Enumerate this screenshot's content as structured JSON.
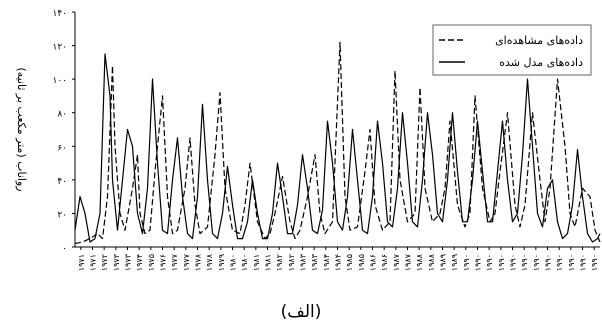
{
  "chart_data": {
    "type": "line",
    "ylabel": "رواناب (متر مکعب بر ثانیه)",
    "caption": "(الف)",
    "ylim": [
      0,
      140
    ],
    "yticks": [
      0,
      20,
      40,
      60,
      80,
      100,
      120,
      140
    ],
    "ytick_labels": [
      "۰",
      "۲۰",
      "۴۰",
      "۶۰",
      "۸۰",
      "۱۰۰",
      "۱۲۰",
      "۱۴۰"
    ],
    "grid": false,
    "legend_position": "top-right",
    "xticks": [
      1971,
      1972,
      1973,
      1974,
      1975,
      1976,
      1977,
      1978,
      1979,
      1980,
      1981,
      1982,
      1983,
      1984,
      1985,
      1986,
      1987,
      1988,
      1989,
      1990,
      1991,
      1992,
      1993,
      1994,
      1995,
      1996,
      1997,
      1998,
      1999,
      2000,
      2001,
      2002,
      2003,
      2004,
      2005,
      2006,
      2007,
      2008,
      2009,
      2010,
      2011,
      2012,
      2013,
      2014,
      2015
    ],
    "xtick_labels": [
      "۱۹۷۱",
      "۱۹۷۱",
      "۱۹۷۲",
      "۱۹۷۳",
      "۱۹۷۳",
      "۱۹۷۴",
      "۱۹۷۵",
      "۱۹۷۶",
      "۱۹۷۷",
      "۱۹۷۷",
      "۱۹۷۸",
      "۱۹۷۸",
      "۱۹۷۹",
      "۱۹۸۰",
      "۱۹۸۰",
      "۱۹۸۱",
      "۱۹۸۱",
      "۱۹۸۲",
      "۱۹۸۲",
      "۱۹۸۳",
      "۱۹۸۳",
      "۱۹۸۴",
      "۱۹۸۴",
      "۱۹۸۵",
      "۱۹۸۵",
      "۱۹۸۶",
      "۱۹۸۶",
      "۱۹۸۷",
      "۱۹۸۷",
      "۱۹۸۸",
      "۱۹۸۸",
      "۱۹۸۹",
      "۱۹۸۹",
      "۱۹۹۰",
      "۱۹۹۰",
      "۱۹۹۰",
      "۱۹۹۰",
      "۱۹۹۰",
      "۱۹۹۰",
      "۱۹۹۰",
      "۱۹۹۰",
      "۱۹۹۰",
      "۱۹۹۰",
      "۱۹۹۰",
      "۱۹۹۰"
    ],
    "series": [
      {
        "name": "داده‌های مشاهده‌ای",
        "style": "dashed",
        "color": "#000000",
        "x": [
          1970.0,
          1970.3,
          1970.6,
          1970.9,
          1971.1,
          1971.3,
          1971.5,
          1971.6,
          1971.8,
          1972.0,
          1972.3,
          1972.5,
          1972.6,
          1972.8,
          1973.0,
          1973.2,
          1973.5,
          1973.7,
          1973.9,
          1974.1,
          1974.4,
          1974.6,
          1974.8,
          1975.0,
          1975.3,
          1975.6,
          1975.8,
          1976.0,
          1976.3,
          1976.6,
          1976.8,
          1977.0,
          1977.3,
          1977.6,
          1977.8,
          1978.0,
          1978.3,
          1978.6,
          1978.8,
          1979.0,
          1979.3,
          1979.6,
          1979.8,
          1980.0,
          1980.3,
          1980.6,
          1980.8,
          1981.0,
          1981.3,
          1981.6,
          1981.8,
          1982.0,
          1982.3,
          1982.6,
          1982.8,
          1983.0,
          1983.3,
          1983.6,
          1983.8,
          1984.0,
          1984.3,
          1984.6,
          1984.8,
          1985.0,
          1985.3,
          1985.6,
          1985.8,
          1986.0,
          1986.3,
          1986.6,
          1986.8,
          1987.0,
          1987.3,
          1987.6,
          1987.8,
          1988.0,
          1988.3,
          1988.6,
          1988.8,
          1989.0,
          1989.3,
          1989.6,
          1989.8,
          1990.0,
          1990.3,
          1990.6,
          1990.8,
          1991.0
        ],
        "y": [
          2,
          3,
          5,
          8,
          5,
          30,
          108,
          60,
          20,
          10,
          35,
          55,
          20,
          8,
          10,
          45,
          90,
          30,
          8,
          10,
          35,
          65,
          25,
          8,
          12,
          55,
          92,
          35,
          10,
          8,
          25,
          50,
          15,
          5,
          8,
          20,
          42,
          15,
          5,
          10,
          30,
          55,
          20,
          8,
          15,
          122,
          30,
          10,
          12,
          45,
          70,
          25,
          10,
          15,
          105,
          40,
          15,
          20,
          95,
          35,
          15,
          20,
          35,
          75,
          25,
          12,
          20,
          90,
          35,
          15,
          20,
          45,
          80,
          25,
          12,
          25,
          80,
          40,
          15,
          35,
          100,
          60,
          20,
          12,
          35,
          30,
          10,
          3
        ]
      },
      {
        "name": "داده‌های مدل شده",
        "style": "solid",
        "color": "#000000",
        "x": [
          1970.0,
          1970.2,
          1970.4,
          1970.6,
          1970.8,
          1971.0,
          1971.2,
          1971.4,
          1971.5,
          1971.7,
          1971.9,
          1972.1,
          1972.3,
          1972.5,
          1972.7,
          1972.9,
          1973.1,
          1973.3,
          1973.5,
          1973.7,
          1973.9,
          1974.1,
          1974.3,
          1974.5,
          1974.7,
          1974.9,
          1975.1,
          1975.3,
          1975.5,
          1975.7,
          1975.9,
          1976.1,
          1976.3,
          1976.5,
          1976.7,
          1976.9,
          1977.1,
          1977.3,
          1977.5,
          1977.7,
          1977.9,
          1978.1,
          1978.3,
          1978.5,
          1978.7,
          1978.9,
          1979.1,
          1979.3,
          1979.5,
          1979.7,
          1979.9,
          1980.1,
          1980.3,
          1980.5,
          1980.7,
          1980.9,
          1981.1,
          1981.3,
          1981.5,
          1981.7,
          1981.9,
          1982.1,
          1982.3,
          1982.5,
          1982.7,
          1982.9,
          1983.1,
          1983.3,
          1983.5,
          1983.7,
          1983.9,
          1984.1,
          1984.3,
          1984.5,
          1984.7,
          1984.9,
          1985.1,
          1985.3,
          1985.5,
          1985.7,
          1985.9,
          1986.1,
          1986.3,
          1986.5,
          1986.7,
          1986.9,
          1987.1,
          1987.3,
          1987.5,
          1987.7,
          1987.9,
          1988.1,
          1988.3,
          1988.5,
          1988.7,
          1988.9,
          1989.1,
          1989.3,
          1989.5,
          1989.7,
          1989.9,
          1990.1,
          1990.3,
          1990.5,
          1990.7,
          1990.9,
          1991.0
        ],
        "y": [
          10,
          30,
          20,
          3,
          5,
          20,
          115,
          90,
          40,
          10,
          40,
          70,
          60,
          20,
          8,
          35,
          100,
          50,
          10,
          8,
          40,
          65,
          30,
          8,
          5,
          30,
          85,
          40,
          8,
          5,
          20,
          48,
          25,
          5,
          5,
          15,
          40,
          20,
          5,
          5,
          20,
          50,
          30,
          8,
          8,
          25,
          55,
          35,
          10,
          8,
          22,
          75,
          50,
          15,
          10,
          30,
          70,
          40,
          10,
          8,
          30,
          75,
          50,
          15,
          12,
          35,
          80,
          50,
          15,
          12,
          40,
          80,
          55,
          20,
          15,
          40,
          80,
          45,
          15,
          15,
          40,
          75,
          45,
          15,
          15,
          45,
          75,
          40,
          15,
          20,
          55,
          100,
          60,
          20,
          12,
          35,
          40,
          15,
          5,
          8,
          25,
          58,
          30,
          8,
          3,
          5,
          8
        ]
      }
    ]
  }
}
